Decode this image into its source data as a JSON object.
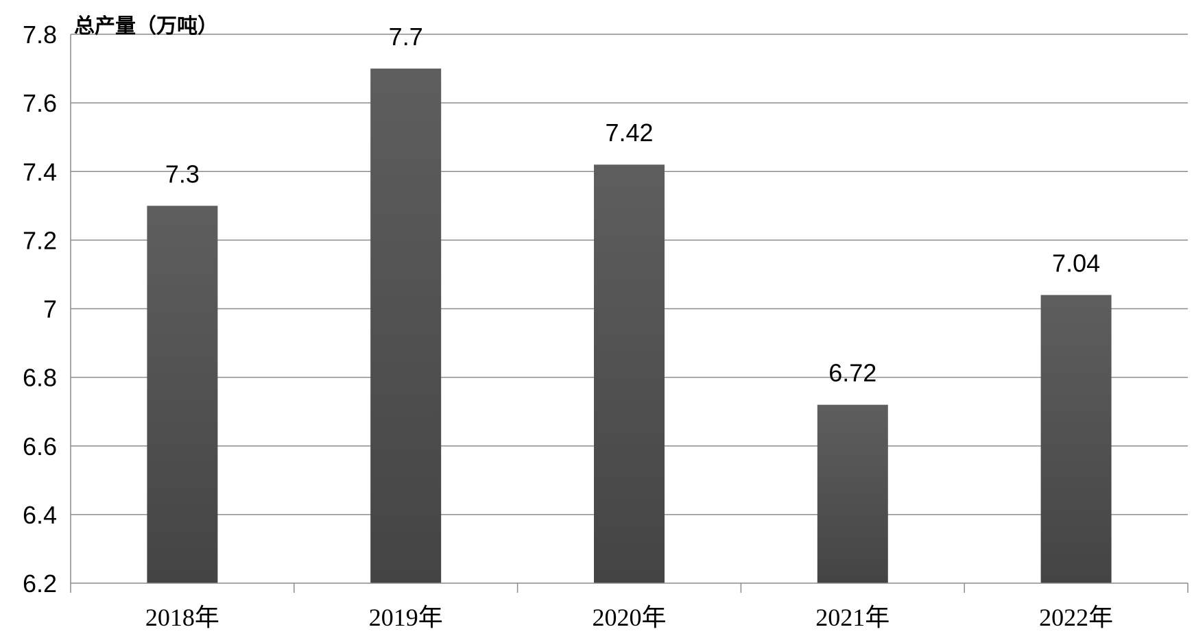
{
  "chart_data": {
    "type": "bar",
    "ylabel": "总产量（万吨）",
    "categories": [
      "2018年",
      "2019年",
      "2020年",
      "2021年",
      "2022年"
    ],
    "values": [
      7.3,
      7.7,
      7.42,
      6.72,
      7.04
    ],
    "value_labels": [
      "7.3",
      "7.7",
      "7.42",
      "6.72",
      "7.04"
    ],
    "ylim": [
      6.2,
      7.8
    ],
    "yticks": [
      "6.2",
      "6.4",
      "6.6",
      "6.8",
      "7",
      "7.2",
      "7.4",
      "7.6",
      "7.8"
    ],
    "grid": true,
    "legend": "none",
    "colors": {
      "bar": "#555555",
      "grid": "#8c8c8c",
      "axis": "#8c8c8c"
    }
  }
}
